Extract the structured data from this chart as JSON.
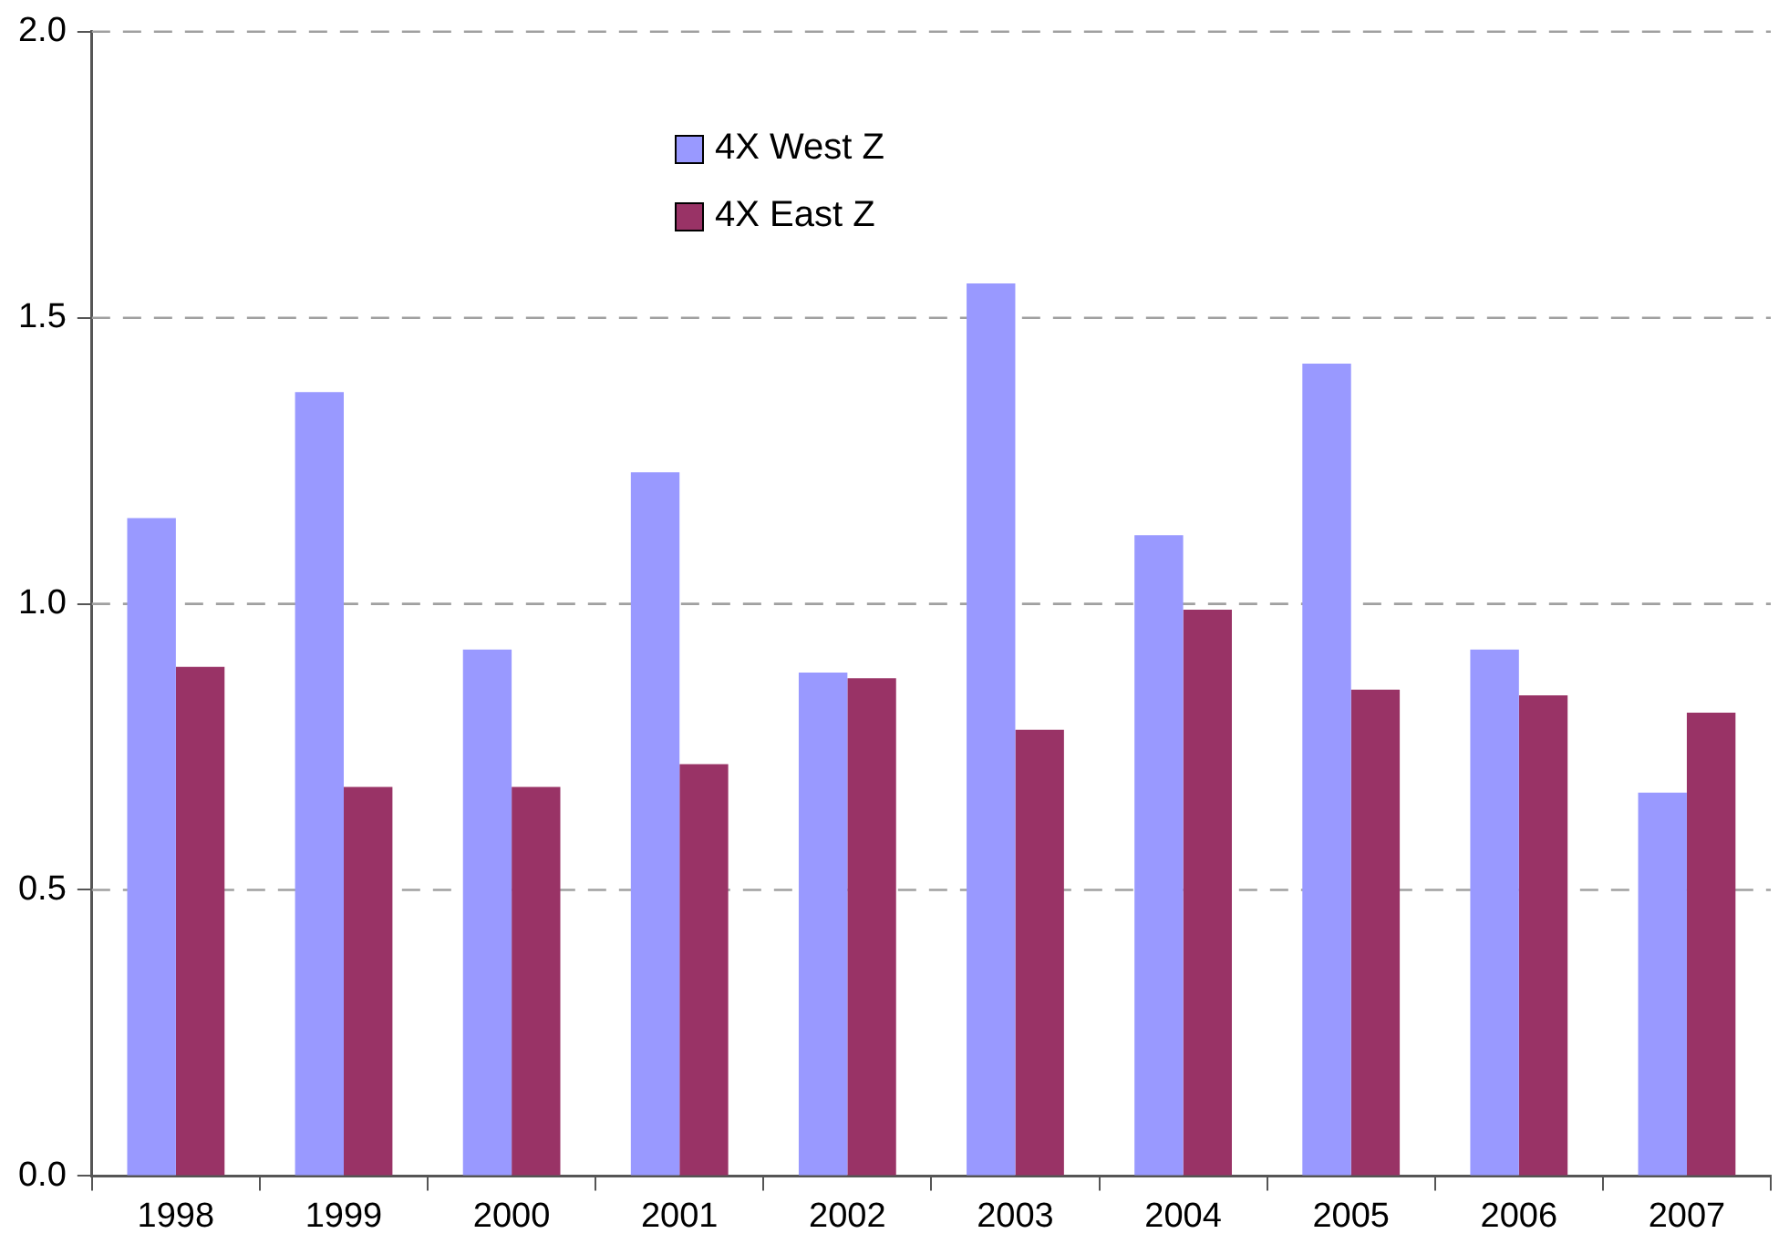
{
  "chart_data": {
    "type": "bar",
    "categories": [
      "1998",
      "1999",
      "2000",
      "2001",
      "2002",
      "2003",
      "2004",
      "2005",
      "2006",
      "2007"
    ],
    "series": [
      {
        "name": "4X West Z",
        "color": "#9999ff",
        "values": [
          1.15,
          1.37,
          0.92,
          1.23,
          0.88,
          1.56,
          1.12,
          1.42,
          0.92,
          0.67
        ]
      },
      {
        "name": "4X East Z",
        "color": "#993366",
        "values": [
          0.89,
          0.68,
          0.68,
          0.72,
          0.87,
          0.78,
          0.99,
          0.85,
          0.84,
          0.81
        ]
      }
    ],
    "ylim": [
      0,
      2
    ],
    "yticks": [
      {
        "value": 0,
        "label": "0.0"
      },
      {
        "value": 0.5,
        "label": "0.5"
      },
      {
        "value": 1,
        "label": "1.0"
      },
      {
        "value": 1.5,
        "label": "1.5"
      },
      {
        "value": 2,
        "label": "2.0"
      }
    ],
    "grid": "y",
    "legend": "top"
  }
}
